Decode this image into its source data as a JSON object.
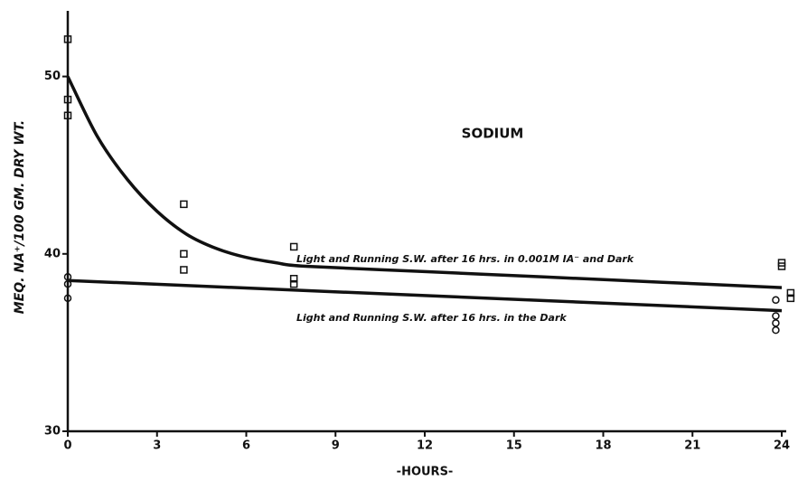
{
  "chart_data": {
    "type": "scatter",
    "title": "SODIUM",
    "x_label": "-HOURS-",
    "y_label": "MEQ. NA⁺/100 GM. DRY WT.",
    "xlim": [
      0,
      24.4
    ],
    "xticks": [
      0,
      3,
      6,
      9,
      12,
      15,
      18,
      21,
      24
    ],
    "ylim": [
      30,
      53.7
    ],
    "yticks": [
      30,
      40,
      50
    ],
    "grid": false,
    "annotations": [
      "Light and Running S.W. after 16 hrs. in 0.001M IA⁻ and Dark",
      "Light and Running S.W. after 16 hrs. in the Dark"
    ],
    "series": [
      {
        "marker": "square",
        "color": "#111111",
        "x": [
          0,
          0,
          0,
          3.9,
          3.9,
          3.9,
          7.6,
          7.6,
          7.6,
          24,
          24,
          24.3,
          24.3
        ],
        "values": [
          52.1,
          48.7,
          47.8,
          42.8,
          40.0,
          39.1,
          40.4,
          38.6,
          38.3,
          39.5,
          39.3,
          37.8,
          37.5
        ]
      },
      {
        "marker": "circle",
        "color": "#111111",
        "x": [
          0,
          0,
          0,
          23.8,
          23.8,
          23.8,
          23.8
        ],
        "values": [
          38.7,
          38.3,
          37.5,
          37.4,
          36.5,
          36.1,
          35.7
        ]
      },
      {
        "marker": "line",
        "color": "#111111",
        "x": [
          0,
          1,
          2,
          3,
          4,
          5,
          6,
          7,
          8,
          12,
          16,
          20,
          24
        ],
        "values": [
          50,
          46.6,
          44.2,
          42.4,
          41.1,
          40.3,
          39.8,
          39.5,
          39.3,
          39.0,
          38.7,
          38.4,
          38.1
        ]
      },
      {
        "marker": "line",
        "color": "#111111",
        "x": [
          0,
          24
        ],
        "values": [
          38.5,
          36.8
        ]
      }
    ]
  }
}
